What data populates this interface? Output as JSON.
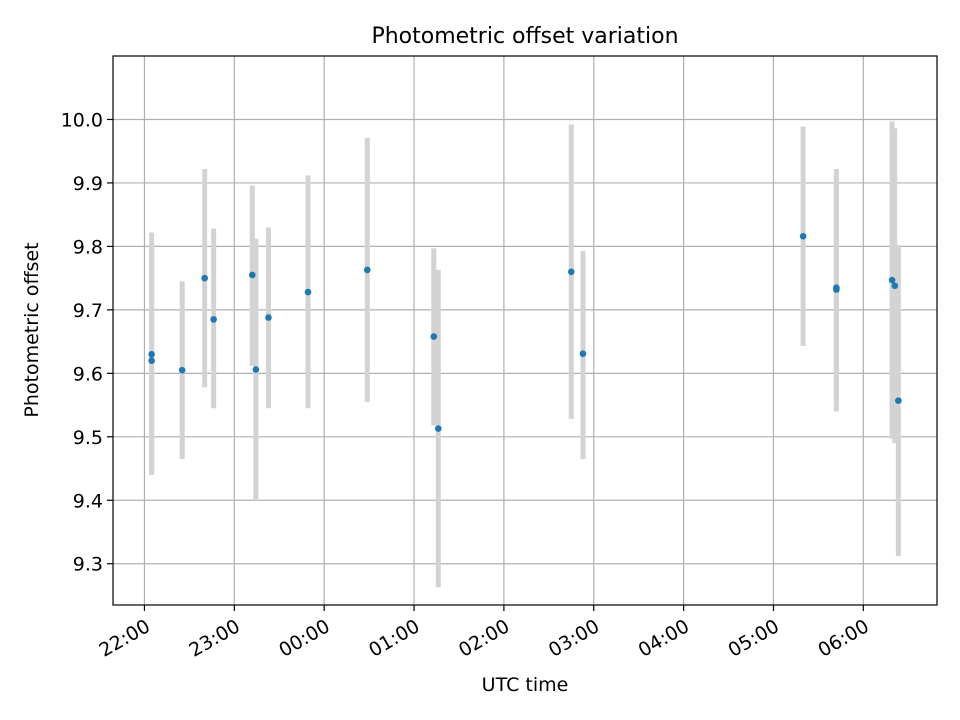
{
  "chart_data": {
    "type": "scatter",
    "title": "Photometric offset variation",
    "xlabel": "UTC time",
    "ylabel": "Photometric offset",
    "x_axis_kind": "time (hours after 22:00 UTC)",
    "x_ticks": [
      {
        "label": "22:00",
        "hours": 0
      },
      {
        "label": "23:00",
        "hours": 1
      },
      {
        "label": "00:00",
        "hours": 2
      },
      {
        "label": "01:00",
        "hours": 3
      },
      {
        "label": "02:00",
        "hours": 4
      },
      {
        "label": "03:00",
        "hours": 5
      },
      {
        "label": "04:00",
        "hours": 6
      },
      {
        "label": "05:00",
        "hours": 7
      },
      {
        "label": "06:00",
        "hours": 8
      }
    ],
    "y_ticks": [
      9.3,
      9.4,
      9.5,
      9.6,
      9.7,
      9.8,
      9.9,
      10.0
    ],
    "xlim": [
      -0.35,
      8.82
    ],
    "ylim": [
      9.235,
      10.1
    ],
    "grid": true,
    "point_color": "#1f77b4",
    "errorbar_color": "#d3d3d3",
    "points": [
      {
        "time": "22:05",
        "hours": 0.08,
        "y": 9.62,
        "low": 9.44,
        "high": 9.8
      },
      {
        "time": "22:05",
        "hours": 0.08,
        "y": 9.63,
        "low": 9.44,
        "high": 9.822
      },
      {
        "time": "22:25",
        "hours": 0.42,
        "y": 9.605,
        "low": 9.465,
        "high": 9.745
      },
      {
        "time": "22:40",
        "hours": 0.67,
        "y": 9.75,
        "low": 9.578,
        "high": 9.922
      },
      {
        "time": "22:46",
        "hours": 0.77,
        "y": 9.685,
        "low": 9.545,
        "high": 9.828
      },
      {
        "time": "23:12",
        "hours": 1.2,
        "y": 9.755,
        "low": 9.612,
        "high": 9.896
      },
      {
        "time": "23:14",
        "hours": 1.24,
        "y": 9.606,
        "low": 9.4,
        "high": 9.812
      },
      {
        "time": "23:23",
        "hours": 1.38,
        "y": 9.688,
        "low": 9.545,
        "high": 9.83
      },
      {
        "time": "23:49",
        "hours": 1.82,
        "y": 9.728,
        "low": 9.545,
        "high": 9.912
      },
      {
        "time": "00:29",
        "hours": 2.48,
        "y": 9.763,
        "low": 9.555,
        "high": 9.971
      },
      {
        "time": "01:13",
        "hours": 3.22,
        "y": 9.658,
        "low": 9.518,
        "high": 9.797
      },
      {
        "time": "01:16",
        "hours": 3.27,
        "y": 9.513,
        "low": 9.263,
        "high": 9.763
      },
      {
        "time": "02:45",
        "hours": 4.75,
        "y": 9.76,
        "low": 9.528,
        "high": 9.992
      },
      {
        "time": "02:53",
        "hours": 4.88,
        "y": 9.631,
        "low": 9.465,
        "high": 9.793
      },
      {
        "time": "05:20",
        "hours": 7.33,
        "y": 9.816,
        "low": 9.643,
        "high": 9.989
      },
      {
        "time": "05:42",
        "hours": 7.7,
        "y": 9.732,
        "low": 9.54,
        "high": 9.922
      },
      {
        "time": "05:42",
        "hours": 7.7,
        "y": 9.735,
        "low": 9.555,
        "high": 9.912
      },
      {
        "time": "06:19",
        "hours": 8.32,
        "y": 9.747,
        "low": 9.497,
        "high": 9.997
      },
      {
        "time": "06:21",
        "hours": 8.35,
        "y": 9.738,
        "low": 9.49,
        "high": 9.986
      },
      {
        "time": "06:23",
        "hours": 8.39,
        "y": 9.557,
        "low": 9.312,
        "high": 9.802
      }
    ]
  }
}
